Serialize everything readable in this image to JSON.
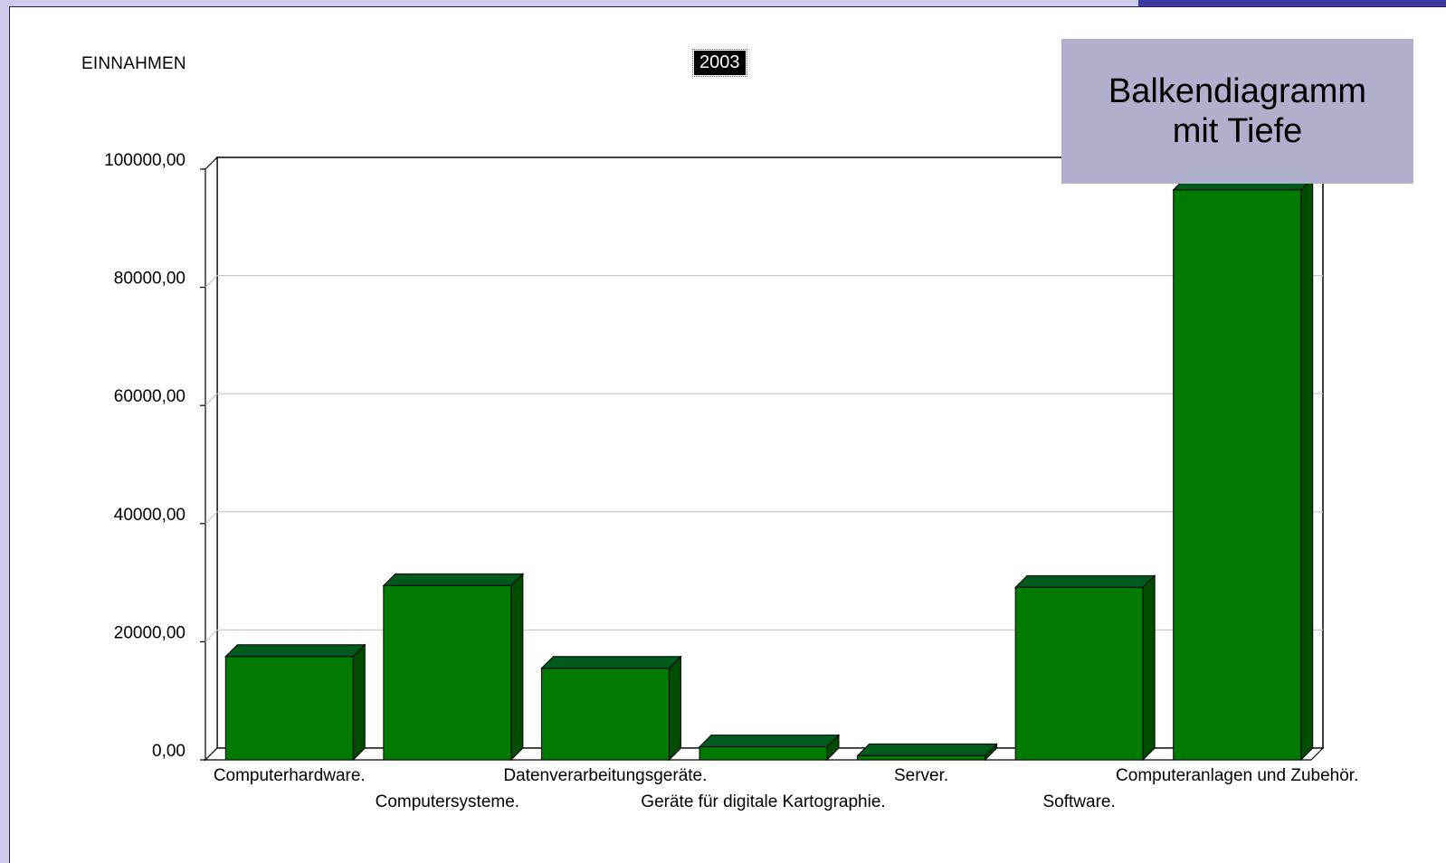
{
  "chart_data": {
    "type": "bar",
    "title": "EINNAHMEN",
    "year": "2003",
    "categories": [
      "Computerhardware.",
      "Computersysteme.",
      "Datenverarbeitungsgeräte.",
      "Geräte für digitale Kartographie.",
      "Server.",
      "Software.",
      "Computeranlagen und Zubehör."
    ],
    "values": [
      17500,
      29500,
      15500,
      2200,
      700,
      29200,
      96500
    ],
    "ylim": [
      0,
      100000
    ],
    "yticks": [
      "0,00",
      "20000,00",
      "40000,00",
      "60000,00",
      "80000,00",
      "100000,00"
    ],
    "ytick_values": [
      0,
      20000,
      40000,
      60000,
      80000,
      100000
    ],
    "grid": true,
    "style": "3d-depth",
    "bar_color": "#007a00",
    "bar_side_color": "#004d00",
    "bar_top_color": "#005a1e"
  },
  "callout": {
    "line1": "Balkendiagramm",
    "line2": "mit Tiefe"
  }
}
